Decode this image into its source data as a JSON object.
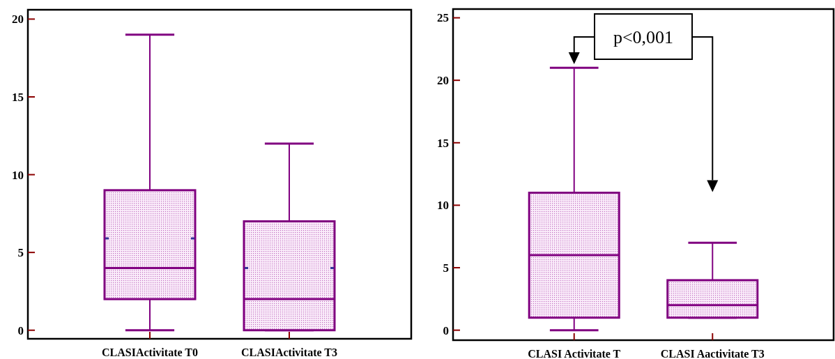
{
  "chart_data": [
    {
      "type": "box",
      "categories": [
        "CLASIActivitate T0",
        "CLASIActivitate T3"
      ],
      "ylim": [
        -0.55,
        20.6
      ],
      "yticks": [
        0,
        5,
        10,
        15,
        20
      ],
      "series": [
        {
          "color": "#800080",
          "boxes": [
            {
              "low": 0,
              "q1": 2,
              "median": 4,
              "q3": 9,
              "high": 19,
              "mean": 5.9
            },
            {
              "low": 0,
              "q1": 0,
              "median": 2,
              "q3": 7,
              "high": 12,
              "mean": 4
            }
          ]
        }
      ]
    },
    {
      "type": "box",
      "categories": [
        "CLASI Activitate T",
        "CLASI Aactivitate T3"
      ],
      "ylim": [
        -0.8,
        25.7
      ],
      "yticks": [
        0,
        5,
        10,
        15,
        20,
        25
      ],
      "annotations": [
        "p<0,001"
      ],
      "series": [
        {
          "color": "#800080",
          "boxes": [
            {
              "low": 0,
              "q1": 1,
              "median": 6,
              "q3": 11,
              "high": 21
            },
            {
              "low": 1,
              "q1": 1,
              "median": 2,
              "q3": 4,
              "high": 7
            }
          ]
        }
      ]
    }
  ]
}
